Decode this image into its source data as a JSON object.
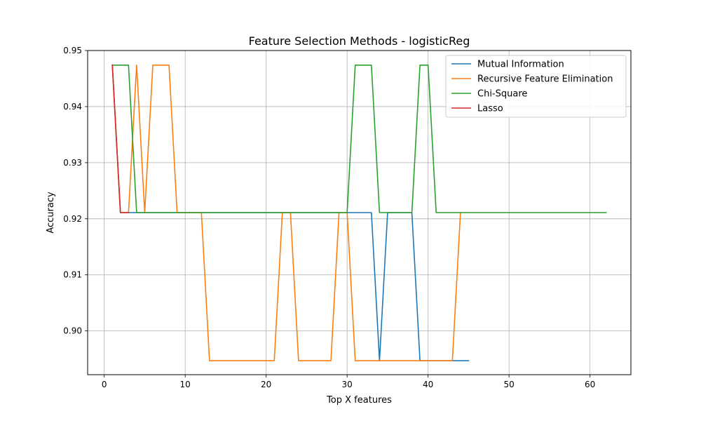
{
  "chart_data": {
    "type": "line",
    "title": "Feature Selection Methods - logisticReg",
    "xlabel": "Top X features",
    "ylabel": "Accuracy",
    "xlim": [
      -2.05,
      65.05
    ],
    "ylim": [
      0.8922,
      0.95
    ],
    "xticks": [
      0,
      10,
      20,
      30,
      40,
      50,
      60
    ],
    "yticks": [
      0.9,
      0.91,
      0.92,
      0.93,
      0.94,
      0.95
    ],
    "ytick_labels": [
      "0.90",
      "0.91",
      "0.92",
      "0.93",
      "0.94",
      "0.95"
    ],
    "grid": true,
    "legend_position": "top-right",
    "series": [
      {
        "name": "Mutual Information",
        "color": "#1f77b4",
        "x": [
          1,
          2,
          3,
          4,
          5,
          6,
          7,
          8,
          9,
          10,
          11,
          12,
          13,
          14,
          15,
          16,
          17,
          18,
          19,
          20,
          21,
          22,
          23,
          24,
          25,
          26,
          27,
          28,
          29,
          30,
          31,
          32,
          33,
          34,
          35,
          36,
          37,
          38,
          39,
          40,
          41,
          42,
          43,
          44,
          45
        ],
        "values": [
          0.9474,
          0.9211,
          0.9211,
          0.9211,
          0.9211,
          0.9211,
          0.9211,
          0.9211,
          0.9211,
          0.9211,
          0.9211,
          0.9211,
          0.9211,
          0.9211,
          0.9211,
          0.9211,
          0.9211,
          0.9211,
          0.9211,
          0.9211,
          0.9211,
          0.9211,
          0.9211,
          0.9211,
          0.9211,
          0.9211,
          0.9211,
          0.9211,
          0.9211,
          0.9211,
          0.9211,
          0.9211,
          0.9211,
          0.8947,
          0.9211,
          0.9211,
          0.9211,
          0.9211,
          0.8947,
          0.8947,
          0.8947,
          0.8947,
          0.8947,
          0.8947,
          0.8947
        ]
      },
      {
        "name": "Recursive Feature Elimination",
        "color": "#ff7f0e",
        "x": [
          1,
          2,
          3,
          4,
          5,
          6,
          7,
          8,
          9,
          10,
          11,
          12,
          13,
          14,
          15,
          16,
          17,
          18,
          19,
          20,
          21,
          22,
          23,
          24,
          25,
          26,
          27,
          28,
          29,
          30,
          31,
          32,
          33,
          34,
          35,
          36,
          37,
          38,
          39,
          40,
          41,
          42,
          43,
          44
        ],
        "values": [
          0.9474,
          0.9211,
          0.9211,
          0.9474,
          0.9211,
          0.9474,
          0.9474,
          0.9474,
          0.9211,
          0.9211,
          0.9211,
          0.9211,
          0.8947,
          0.8947,
          0.8947,
          0.8947,
          0.8947,
          0.8947,
          0.8947,
          0.8947,
          0.8947,
          0.9211,
          0.9211,
          0.8947,
          0.8947,
          0.8947,
          0.8947,
          0.8947,
          0.9211,
          0.9211,
          0.8947,
          0.8947,
          0.8947,
          0.8947,
          0.8947,
          0.8947,
          0.8947,
          0.8947,
          0.8947,
          0.8947,
          0.8947,
          0.8947,
          0.8947,
          0.9211
        ]
      },
      {
        "name": "Chi-Square",
        "color": "#2ca02c",
        "x": [
          1,
          2,
          3,
          4,
          5,
          6,
          7,
          8,
          9,
          10,
          11,
          12,
          13,
          14,
          15,
          16,
          17,
          18,
          19,
          20,
          21,
          22,
          23,
          24,
          25,
          26,
          27,
          28,
          29,
          30,
          31,
          32,
          33,
          34,
          35,
          36,
          37,
          38,
          39,
          40,
          41,
          42,
          43,
          44,
          45,
          46,
          47,
          48,
          49,
          50,
          51,
          52,
          53,
          54,
          55,
          56,
          57,
          58,
          59,
          60,
          61,
          62
        ],
        "values": [
          0.9474,
          0.9474,
          0.9474,
          0.9211,
          0.9211,
          0.9211,
          0.9211,
          0.9211,
          0.9211,
          0.9211,
          0.9211,
          0.9211,
          0.9211,
          0.9211,
          0.9211,
          0.9211,
          0.9211,
          0.9211,
          0.9211,
          0.9211,
          0.9211,
          0.9211,
          0.9211,
          0.9211,
          0.9211,
          0.9211,
          0.9211,
          0.9211,
          0.9211,
          0.9211,
          0.9474,
          0.9474,
          0.9474,
          0.9211,
          0.9211,
          0.9211,
          0.9211,
          0.9211,
          0.9474,
          0.9474,
          0.9211,
          0.9211,
          0.9211,
          0.9211,
          0.9211,
          0.9211,
          0.9211,
          0.9211,
          0.9211,
          0.9211,
          0.9211,
          0.9211,
          0.9211,
          0.9211,
          0.9211,
          0.9211,
          0.9211,
          0.9211,
          0.9211,
          0.9211,
          0.9211,
          0.9211
        ]
      },
      {
        "name": "Lasso",
        "color": "#d62728",
        "x": [
          1,
          2,
          3
        ],
        "values": [
          0.9474,
          0.9211,
          0.9211
        ]
      }
    ]
  }
}
